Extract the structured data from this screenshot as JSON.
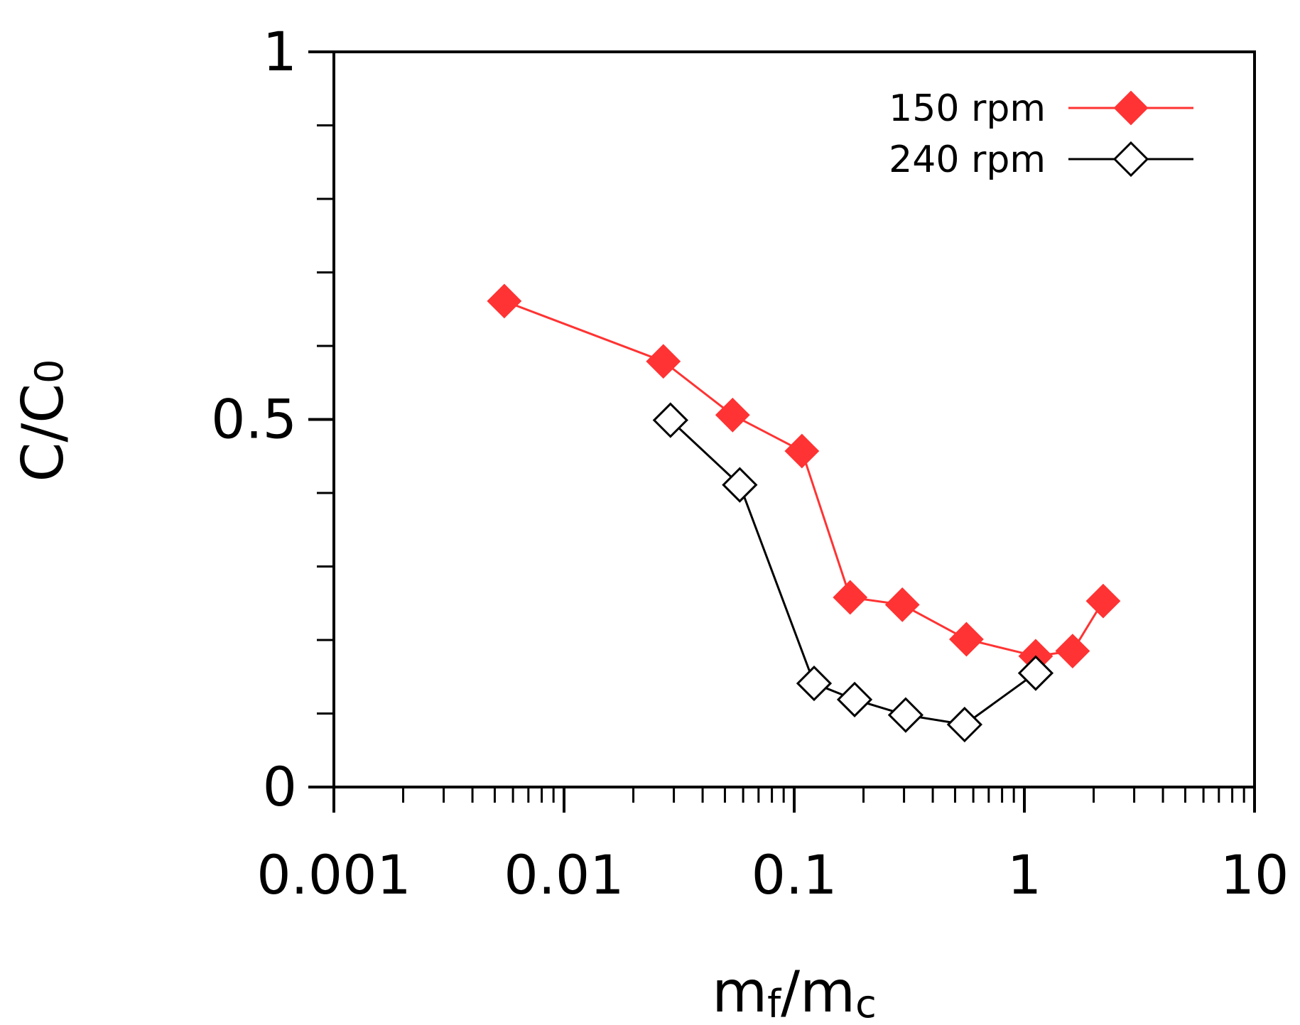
{
  "chart_data": {
    "type": "line",
    "title": "",
    "xlabel": {
      "main": "m",
      "sub1": "f",
      "slash": "/m",
      "sub2": "c"
    },
    "ylabel": {
      "main": "C/C",
      "sub": "0"
    },
    "xscale": "log",
    "xlim": [
      0.001,
      10
    ],
    "ylim": [
      0,
      1
    ],
    "x_tick_labels": [
      "0.001",
      "0.01",
      "0.1",
      "1",
      "10"
    ],
    "y_tick_labels": [
      "0",
      "0.5",
      "1"
    ],
    "legend_position": "top-right",
    "series": [
      {
        "name": "150 rpm",
        "color": "#ff3333",
        "marker": "filled-diamond",
        "x": [
          0.0055,
          0.027,
          0.054,
          0.108,
          0.175,
          0.295,
          0.56,
          1.12,
          1.62,
          2.2
        ],
        "y": [
          0.661,
          0.579,
          0.506,
          0.457,
          0.258,
          0.248,
          0.201,
          0.178,
          0.185,
          0.253
        ]
      },
      {
        "name": "240 rpm",
        "color": "#000000",
        "marker": "open-diamond",
        "x": [
          0.029,
          0.058,
          0.122,
          0.183,
          0.305,
          0.55,
          1.12
        ],
        "y": [
          0.499,
          0.411,
          0.141,
          0.119,
          0.098,
          0.085,
          0.155
        ]
      }
    ]
  }
}
